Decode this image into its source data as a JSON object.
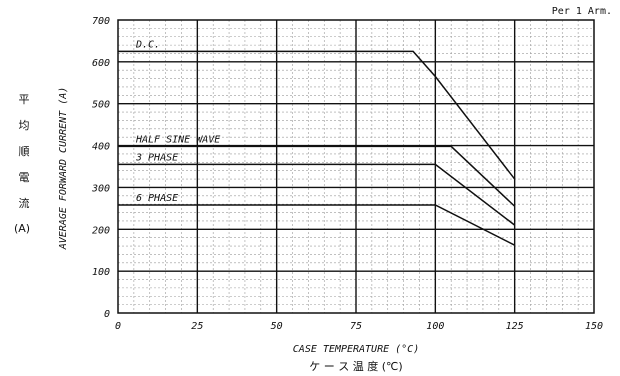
{
  "chart_data": {
    "type": "line",
    "note": "Per 1 Arm.",
    "xlabel": "CASE TEMPERATURE (°C)",
    "xlabel_jp": "ケ ー ス 温 度 (℃)",
    "ylabel": "AVERAGE FORWARD CURRENT (A)",
    "ylabel_jp": [
      "平",
      "均",
      "順",
      "電",
      "流",
      "(A)"
    ],
    "xlim": [
      0,
      150
    ],
    "ylim": [
      0,
      700
    ],
    "x_ticks": [
      "0",
      "25",
      "50",
      "75",
      "100",
      "125",
      "150"
    ],
    "y_ticks": [
      "0",
      "100",
      "200",
      "300",
      "400",
      "500",
      "600",
      "700"
    ],
    "grid": true,
    "series": [
      {
        "name": "D.C.",
        "points": [
          [
            0,
            625
          ],
          [
            93,
            625
          ],
          [
            100,
            565
          ],
          [
            125,
            320
          ]
        ]
      },
      {
        "name": "HALF SINE WAVE",
        "points": [
          [
            0,
            398
          ],
          [
            105,
            398
          ],
          [
            125,
            255
          ]
        ]
      },
      {
        "name": "3 PHASE",
        "points": [
          [
            0,
            355
          ],
          [
            100,
            355
          ],
          [
            125,
            210
          ]
        ]
      },
      {
        "name": "6 PHASE",
        "points": [
          [
            0,
            258
          ],
          [
            100,
            258
          ],
          [
            125,
            162
          ]
        ]
      }
    ]
  }
}
